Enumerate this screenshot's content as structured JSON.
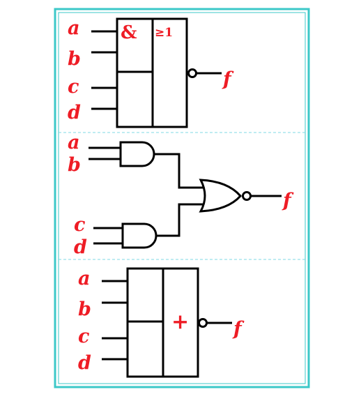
{
  "colors": {
    "frame": "#3cc8c8",
    "label": "#ee1c25",
    "wire": "#000000",
    "divider": "#7fd9e6"
  },
  "panel_top": {
    "inputs": [
      "a",
      "b",
      "c",
      "d"
    ],
    "and_symbol": "&",
    "or_symbol": "≥1",
    "output": "f"
  },
  "panel_middle": {
    "inputs": [
      "a",
      "b",
      "c",
      "d"
    ],
    "gates": [
      "and-gate",
      "and-gate",
      "nor-gate"
    ],
    "output": "f"
  },
  "panel_bottom": {
    "inputs": [
      "a",
      "b",
      "c",
      "d"
    ],
    "or_symbol": "+",
    "output": "f"
  }
}
